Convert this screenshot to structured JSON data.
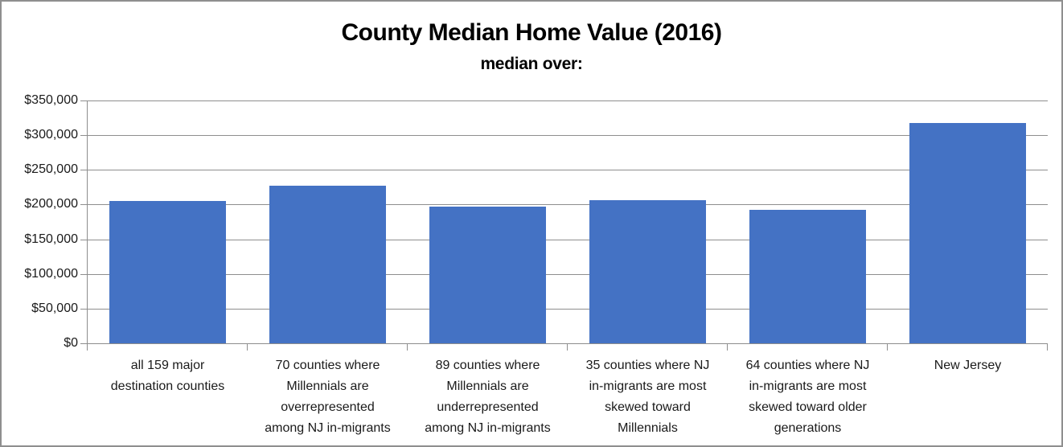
{
  "chart_data": {
    "type": "bar",
    "title": "County Median Home Value (2016)",
    "subtitle": "median over:",
    "categories": [
      "all 159 major destination counties",
      "70 counties where Millennials are overrepresented among NJ in-migrants",
      "89 counties where Millennials are underrepresented among NJ in-migrants",
      "35 counties where NJ in-migrants are most skewed toward Millennials",
      "64 counties where NJ in-migrants are most skewed toward older generations",
      "New Jersey"
    ],
    "category_lines": [
      [
        "all 159 major",
        "destination counties"
      ],
      [
        "70 counties where",
        "Millennials are",
        "overrepresented",
        "among NJ in-migrants"
      ],
      [
        "89 counties where",
        "Millennials are",
        "underrepresented",
        "among NJ in-migrants"
      ],
      [
        "35 counties where NJ",
        "in-migrants are most",
        "skewed toward",
        "Millennials"
      ],
      [
        "64 counties where NJ",
        "in-migrants are most",
        "skewed toward older",
        "generations"
      ],
      [
        "New Jersey"
      ]
    ],
    "values": [
      205000,
      227000,
      197000,
      206000,
      192000,
      317000
    ],
    "ylim": [
      0,
      350000
    ],
    "ytick_step": 50000,
    "ytick_labels": [
      "$0",
      "$50,000",
      "$100,000",
      "$150,000",
      "$200,000",
      "$250,000",
      "$300,000",
      "$350,000"
    ],
    "grid": true,
    "legend": "none",
    "colors": {
      "bar": "#4472C4",
      "grid": "#8e8e8e",
      "axis": "#8e8e8e",
      "text": "#1a1a1a",
      "border": "#8f8f8f",
      "background": "#ffffff"
    }
  }
}
